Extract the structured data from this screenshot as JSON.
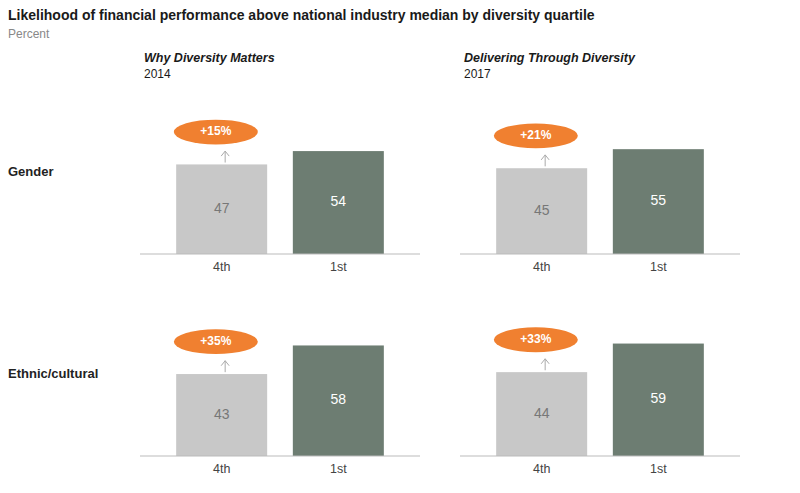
{
  "title": "Likelihood of financial performance above national industry median by diversity quartile",
  "subtitle": "Percent",
  "chart_data": [
    {
      "type": "bar",
      "title": "Why Diversity Matters",
      "subtitle": "2014",
      "ylabel": "Gender",
      "categories": [
        "4th",
        "1st"
      ],
      "values": [
        47,
        54
      ],
      "colors": [
        "#c8c8c8",
        "#6d7d72"
      ],
      "ylim": [
        0,
        85
      ],
      "tick_labels": "x",
      "data_labels": true,
      "grid": false,
      "annotations": [
        "+15%"
      ]
    },
    {
      "type": "bar",
      "title": "Delivering Through Diversity",
      "subtitle": "2017",
      "categories": [
        "4th",
        "1st"
      ],
      "values": [
        45,
        55
      ],
      "colors": [
        "#c8c8c8",
        "#6d7d72"
      ],
      "ylim": [
        0,
        85
      ],
      "tick_labels": "x",
      "data_labels": true,
      "grid": false,
      "annotations": [
        "+21%"
      ]
    },
    {
      "type": "bar",
      "ylabel": "Ethnic/cultural",
      "categories": [
        "4th",
        "1st"
      ],
      "values": [
        43,
        58
      ],
      "colors": [
        "#c8c8c8",
        "#6d7d72"
      ],
      "ylim": [
        0,
        85
      ],
      "tick_labels": "x",
      "data_labels": true,
      "grid": false,
      "annotations": [
        "+35%"
      ]
    },
    {
      "type": "bar",
      "categories": [
        "4th",
        "1st"
      ],
      "values": [
        44,
        59
      ],
      "colors": [
        "#c8c8c8",
        "#6d7d72"
      ],
      "ylim": [
        0,
        85
      ],
      "tick_labels": "x",
      "data_labels": true,
      "grid": false,
      "annotations": [
        "+33%"
      ]
    }
  ]
}
